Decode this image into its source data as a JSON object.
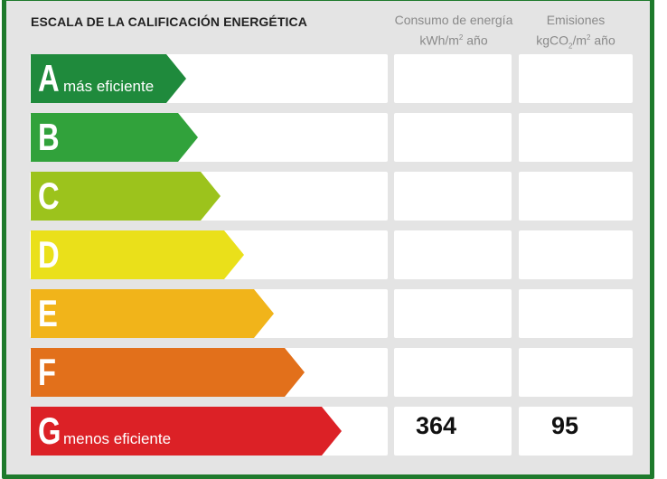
{
  "title": "ESCALA DE LA CALIFICACIÓN ENERGÉTICA",
  "columns": {
    "consumo": {
      "line1": "Consumo de energía",
      "unit_main": "kWh/m",
      "unit_sup": "2",
      "unit_tail": " año"
    },
    "emisiones": {
      "line1": "Emisiones",
      "unit_a": "kgCO",
      "unit_sub": "2",
      "unit_b": "/m",
      "unit_sup": "2",
      "unit_tail": " año"
    }
  },
  "ratings": [
    {
      "letter": "A",
      "sublabel": "más eficiente",
      "color": "#1f8a3c"
    },
    {
      "letter": "B",
      "sublabel": "",
      "color": "#31a23b"
    },
    {
      "letter": "C",
      "sublabel": "",
      "color": "#9cc31c"
    },
    {
      "letter": "D",
      "sublabel": "",
      "color": "#eae01a"
    },
    {
      "letter": "E",
      "sublabel": "",
      "color": "#f1b41a"
    },
    {
      "letter": "F",
      "sublabel": "",
      "color": "#e2701b"
    },
    {
      "letter": "G",
      "sublabel": "menos eficiente",
      "color": "#dc2126"
    }
  ],
  "result": {
    "rating": "G",
    "consumo": "364",
    "emisiones": "95"
  }
}
